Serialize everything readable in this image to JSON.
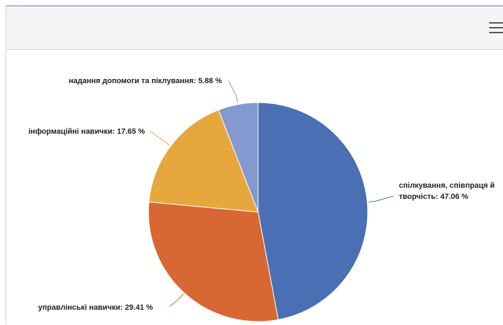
{
  "header": {
    "menu_icon": "hamburger-menu-icon"
  },
  "chart_data": {
    "type": "pie",
    "title": "",
    "slices": [
      {
        "label": "спілкування, співпраця й творчість: 47.06 %",
        "lines": [
          "спілкування, співпраця й",
          "творчість: 47.06 %"
        ],
        "value": 47.06,
        "color": "#4a6fb5"
      },
      {
        "label": "управлінські навички: 29.41 %",
        "lines": [
          "управлінські навички: 29.41 %"
        ],
        "value": 29.41,
        "color": "#d86733"
      },
      {
        "label": "інформаційні навички: 17.65 %",
        "lines": [
          "інформаційні навички: 17.65 %"
        ],
        "value": 17.65,
        "color": "#e6a73c"
      },
      {
        "label": "надання допомоги та піклування: 5.88 %",
        "lines": [
          "надання допомоги та піклування: 5.88 %"
        ],
        "value": 5.88,
        "color": "#8399cf"
      }
    ]
  }
}
